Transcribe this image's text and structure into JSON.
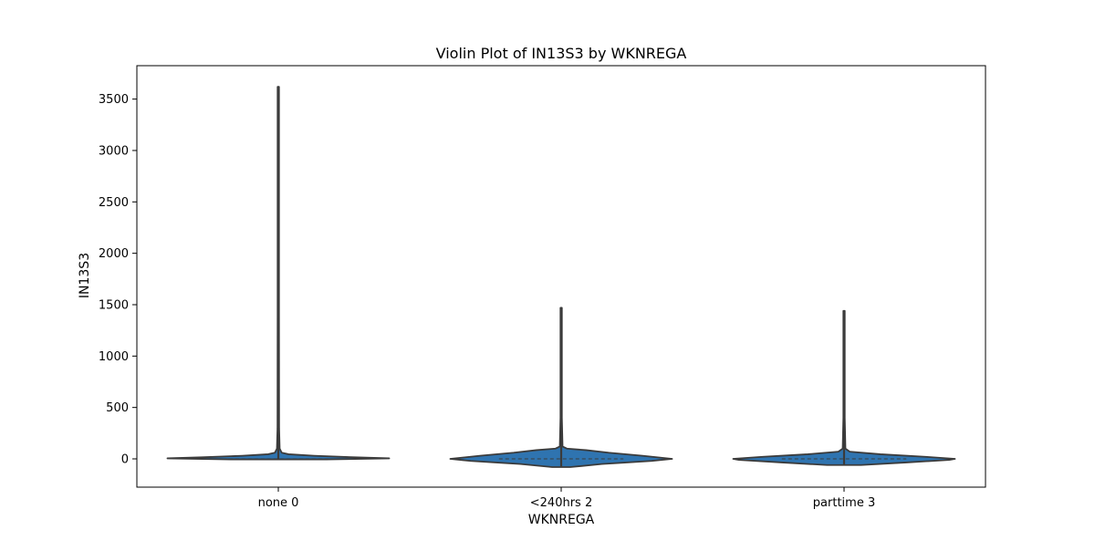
{
  "chart_data": {
    "type": "violin",
    "title": "Violin Plot of IN13S3 by WKNREGA",
    "xlabel": "WKNREGA",
    "ylabel": "IN13S3",
    "categories": [
      "none 0",
      "<240hrs 2",
      "parttime 3"
    ],
    "ylim": [
      -275,
      3825
    ],
    "yticks": [
      0,
      500,
      1000,
      1500,
      2000,
      2500,
      3000,
      3500
    ],
    "grid": false,
    "color": "#2f74b0",
    "outline_color": "#3b3b3b",
    "violins": [
      {
        "category": "none 0",
        "min": 0,
        "max": 3620,
        "profile": [
          [
            -5,
            0.42
          ],
          [
            5,
            0.98
          ],
          [
            15,
            0.68
          ],
          [
            30,
            0.32
          ],
          [
            45,
            0.09
          ],
          [
            60,
            0.03
          ],
          [
            100,
            0.012
          ],
          [
            300,
            0.007
          ],
          [
            1400,
            0.006
          ],
          [
            3620,
            0.006
          ]
        ]
      },
      {
        "category": "<240hrs 2",
        "min": -80,
        "max": 1470,
        "profile": [
          [
            -80,
            0.08
          ],
          [
            -50,
            0.36
          ],
          [
            -20,
            0.8
          ],
          [
            0,
            0.98
          ],
          [
            30,
            0.72
          ],
          [
            60,
            0.42
          ],
          [
            85,
            0.22
          ],
          [
            100,
            0.05
          ],
          [
            120,
            0.012
          ],
          [
            400,
            0.006
          ],
          [
            1470,
            0.006
          ]
        ]
      },
      {
        "category": "parttime 3",
        "min": -60,
        "max": 1440,
        "profile": [
          [
            -60,
            0.15
          ],
          [
            -35,
            0.55
          ],
          [
            -10,
            0.93
          ],
          [
            0,
            0.98
          ],
          [
            20,
            0.72
          ],
          [
            45,
            0.32
          ],
          [
            70,
            0.05
          ],
          [
            100,
            0.012
          ],
          [
            400,
            0.006
          ],
          [
            1440,
            0.006
          ]
        ]
      }
    ]
  }
}
